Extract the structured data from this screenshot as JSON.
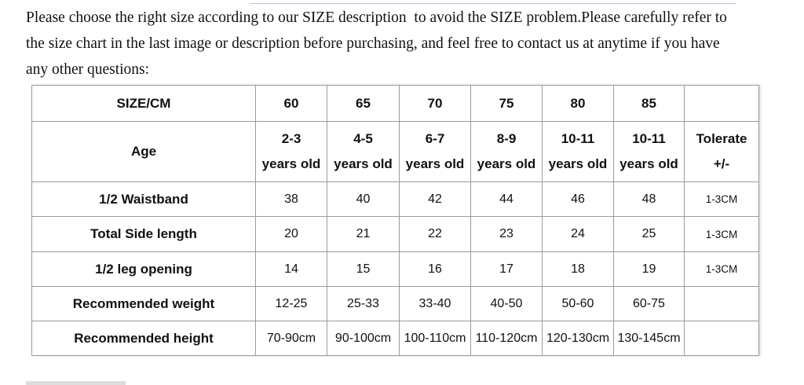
{
  "intro": {
    "lines": [
      "Please choose the right size according to our SIZE description  to avoid the SIZE problem.Please carefully refer to",
      "the size chart in the last image or description before purchasing, and feel free to contact us at anytime if you have",
      "any other questions:"
    ]
  },
  "table": {
    "header": {
      "label": "SIZE/CM",
      "sizes": [
        "60",
        "65",
        "70",
        "75",
        "80",
        "85"
      ]
    },
    "rows": [
      {
        "label": "Age",
        "values": [
          [
            "2-3",
            "years old"
          ],
          [
            "4-5",
            "years old"
          ],
          [
            "6-7",
            "years old"
          ],
          [
            "8-9",
            "years old"
          ],
          [
            "10-11",
            "years old"
          ],
          [
            "10-11",
            "years old"
          ]
        ],
        "tolerance": [
          "Tolerate",
          "+/-"
        ]
      },
      {
        "label": "1/2 Waistband",
        "values": [
          "38",
          "40",
          "42",
          "44",
          "46",
          "48"
        ],
        "tolerance": "1-3CM"
      },
      {
        "label": "Total Side length",
        "values": [
          "20",
          "21",
          "22",
          "23",
          "24",
          "25"
        ],
        "tolerance": "1-3CM"
      },
      {
        "label": "1/2 leg opening",
        "values": [
          "14",
          "15",
          "16",
          "17",
          "18",
          "19"
        ],
        "tolerance": "1-3CM"
      },
      {
        "label": "Recommended weight",
        "values": [
          "12-25",
          "25-33",
          "33-40",
          "40-50",
          "50-60",
          "60-75"
        ]
      },
      {
        "label": "Recommended height",
        "values": [
          "70-90cm",
          "90-100cm",
          "100-110cm",
          "110-120cm",
          "120-130cm",
          "130-145cm"
        ]
      }
    ]
  }
}
